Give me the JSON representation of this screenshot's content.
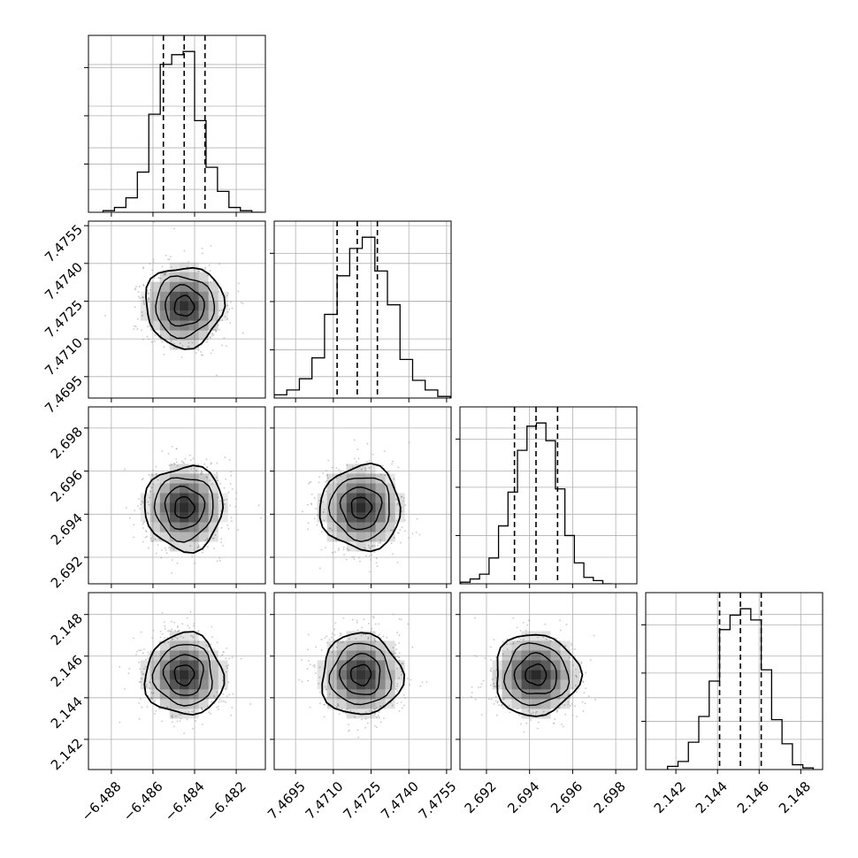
{
  "chart_data": {
    "type": "corner",
    "parameters": 4,
    "axes": [
      {
        "range": [
          -6.4891,
          -6.4806
        ],
        "ticks": [
          -6.488,
          -6.486,
          -6.484,
          -6.482
        ],
        "tick_labels": [
          "−6.488",
          "−6.486",
          "−6.484",
          "−6.482"
        ]
      },
      {
        "range": [
          7.46865,
          7.47568
        ],
        "ticks": [
          7.4695,
          7.471,
          7.4725,
          7.474,
          7.4755
        ],
        "tick_labels": [
          "7.4695",
          "7.4710",
          "7.4725",
          "7.4740",
          "7.4755"
        ]
      },
      {
        "range": [
          2.69077,
          2.69898
        ],
        "ticks": [
          2.692,
          2.694,
          2.696,
          2.698
        ],
        "tick_labels": [
          "2.692",
          "2.694",
          "2.696",
          "2.698"
        ]
      },
      {
        "range": [
          2.14055,
          2.14905
        ],
        "ticks": [
          2.142,
          2.144,
          2.146,
          2.148
        ],
        "tick_labels": [
          "2.142",
          "2.144",
          "2.146",
          "2.148"
        ]
      }
    ],
    "marginals": [
      {
        "quantiles": [
          -6.4855,
          -6.4845,
          -6.4835
        ],
        "bin_edges": [
          -6.4884,
          -6.48785,
          -6.4873,
          -6.48675,
          -6.4862,
          -6.48565,
          -6.4851,
          -6.48455,
          -6.484,
          -6.48345,
          -6.4829,
          -6.48235,
          -6.4818,
          -6.48125,
          -6.4807
        ],
        "counts": [
          0.01,
          0.03,
          0.09,
          0.25,
          0.61,
          0.92,
          0.98,
          1.0,
          0.57,
          0.28,
          0.13,
          0.03,
          0.01,
          0.0
        ],
        "ymax_rel": 1.1
      },
      {
        "quantiles": [
          7.47115,
          7.47195,
          7.47275
        ],
        "bin_edges": [
          7.46865,
          7.46915,
          7.46965,
          7.47015,
          7.47065,
          7.47115,
          7.47165,
          7.47215,
          7.47265,
          7.47315,
          7.47365,
          7.47415,
          7.47465,
          7.47515,
          7.47565
        ],
        "counts": [
          0.02,
          0.05,
          0.12,
          0.25,
          0.52,
          0.76,
          0.93,
          1.0,
          0.79,
          0.58,
          0.24,
          0.11,
          0.05,
          0.01
        ],
        "ymax_rel": 1.1
      },
      {
        "quantiles": [
          2.6933,
          2.6943,
          2.6953
        ],
        "bin_edges": [
          2.6908,
          2.69124,
          2.69168,
          2.69212,
          2.69256,
          2.693,
          2.69344,
          2.69388,
          2.69432,
          2.69476,
          2.6952,
          2.69564,
          2.69608,
          2.69652,
          2.69696,
          2.6974,
          2.69784
        ],
        "counts": [
          0.01,
          0.03,
          0.06,
          0.16,
          0.36,
          0.57,
          0.83,
          0.98,
          1.0,
          0.89,
          0.59,
          0.3,
          0.13,
          0.04,
          0.02,
          0.0
        ],
        "ymax_rel": 1.1
      },
      {
        "quantiles": [
          2.1441,
          2.1451,
          2.1461
        ],
        "bin_edges": [
          2.1416,
          2.1421,
          2.1426,
          2.1431,
          2.1436,
          2.1441,
          2.1446,
          2.1451,
          2.1456,
          2.1461,
          2.1466,
          2.1471,
          2.1476,
          2.1481,
          2.1486
        ],
        "counts": [
          0.02,
          0.05,
          0.17,
          0.33,
          0.55,
          0.87,
          0.96,
          1.0,
          0.93,
          0.62,
          0.31,
          0.16,
          0.03,
          0.01
        ],
        "ymax_rel": 1.1
      }
    ],
    "joints": [
      {
        "x_param": 0,
        "y_param": 1,
        "center": [
          -6.4845,
          7.4723
        ],
        "sigma": [
          0.00094,
          0.0008
        ]
      },
      {
        "x_param": 0,
        "y_param": 2,
        "center": [
          -6.4845,
          2.6943
        ],
        "sigma": [
          0.00094,
          0.00098
        ]
      },
      {
        "x_param": 1,
        "y_param": 2,
        "center": [
          7.4721,
          2.6943
        ],
        "sigma": [
          0.0008,
          0.00098
        ]
      },
      {
        "x_param": 0,
        "y_param": 3,
        "center": [
          -6.4845,
          2.1451
        ],
        "sigma": [
          0.00094,
          0.00098
        ]
      },
      {
        "x_param": 1,
        "y_param": 3,
        "center": [
          7.4721,
          2.1451
        ],
        "sigma": [
          0.0008,
          0.00098
        ]
      },
      {
        "x_param": 2,
        "y_param": 3,
        "center": [
          2.6943,
          2.1451
        ],
        "sigma": [
          0.00098,
          0.00098
        ]
      }
    ],
    "contour_levels_sigma": [
      0.5,
      1.0,
      1.5,
      2.0
    ],
    "grid": true,
    "colors": {
      "line": "#000000",
      "grid": "#b0b0b0",
      "points": "#9a9a9a",
      "shade": "#000000"
    }
  }
}
